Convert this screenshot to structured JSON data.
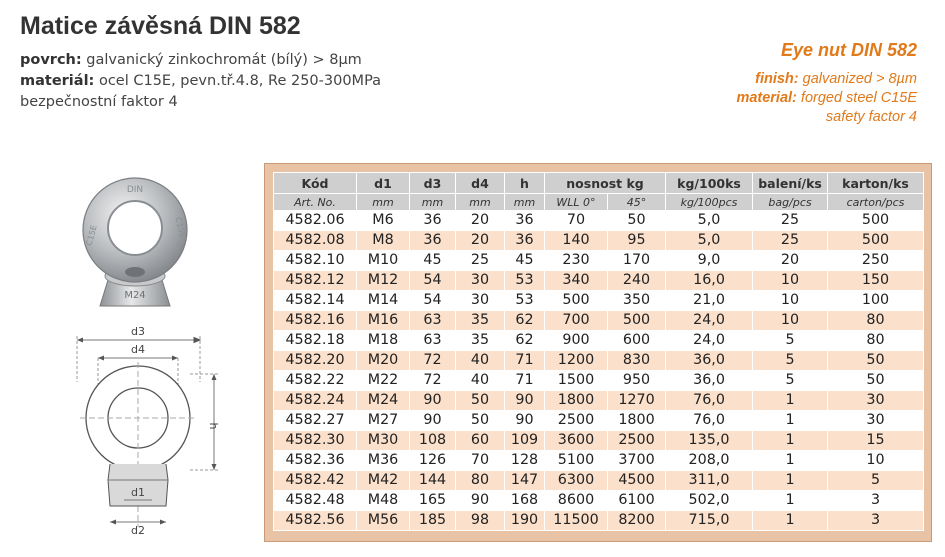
{
  "header": {
    "title": "Matice závěsná DIN 582",
    "surface_label": "povrch:",
    "surface_value": " galvanický zinkochromát (bílý) > 8µm",
    "material_label": "materiál:",
    "material_value": " ocel C15E, pevn.tř.4.8, Re 250-300MPa",
    "safety": "bezpečnostní faktor 4"
  },
  "header_en": {
    "title": "Eye nut DIN 582",
    "finish_label": "finish:",
    "finish_value": " galvanized > 8µm",
    "material_label": "material:",
    "material_value": " forged steel C15E",
    "safety": "safety factor 4"
  },
  "colors": {
    "accent": "#e07a1a",
    "frame": "#e8c3a6",
    "row_tint": "#fbe0cb",
    "header_bg": "#cfcfcf"
  },
  "photo": {
    "marking_top": "DIN",
    "marking_left": "C15E",
    "marking_right": "C15E",
    "marking_bottom": "M24"
  },
  "drawing": {
    "d3": "d3",
    "d4": "d4",
    "h": "h",
    "d1": "d1",
    "d2": "d2"
  },
  "table": {
    "header_row1": [
      "Kód",
      "d1",
      "d3",
      "d4",
      "h",
      "nosnost kg",
      "kg/100ks",
      "balení/ks",
      "karton/ks"
    ],
    "header_row2": [
      "Art. No.",
      "mm",
      "mm",
      "mm",
      "mm",
      "WLL 0°",
      "45°",
      "kg/100pcs",
      "bag/pcs",
      "carton/pcs"
    ],
    "rows": [
      [
        "4582.06",
        "M6",
        "36",
        "20",
        "36",
        "70",
        "50",
        "5,0",
        "25",
        "500"
      ],
      [
        "4582.08",
        "M8",
        "36",
        "20",
        "36",
        "140",
        "95",
        "5,0",
        "25",
        "500"
      ],
      [
        "4582.10",
        "M10",
        "45",
        "25",
        "45",
        "230",
        "170",
        "9,0",
        "20",
        "250"
      ],
      [
        "4582.12",
        "M12",
        "54",
        "30",
        "53",
        "340",
        "240",
        "16,0",
        "10",
        "150"
      ],
      [
        "4582.14",
        "M14",
        "54",
        "30",
        "53",
        "500",
        "350",
        "21,0",
        "10",
        "100"
      ],
      [
        "4582.16",
        "M16",
        "63",
        "35",
        "62",
        "700",
        "500",
        "24,0",
        "10",
        "80"
      ],
      [
        "4582.18",
        "M18",
        "63",
        "35",
        "62",
        "900",
        "600",
        "24,0",
        "5",
        "80"
      ],
      [
        "4582.20",
        "M20",
        "72",
        "40",
        "71",
        "1200",
        "830",
        "36,0",
        "5",
        "50"
      ],
      [
        "4582.22",
        "M22",
        "72",
        "40",
        "71",
        "1500",
        "950",
        "36,0",
        "5",
        "50"
      ],
      [
        "4582.24",
        "M24",
        "90",
        "50",
        "90",
        "1800",
        "1270",
        "76,0",
        "1",
        "30"
      ],
      [
        "4582.27",
        "M27",
        "90",
        "50",
        "90",
        "2500",
        "1800",
        "76,0",
        "1",
        "30"
      ],
      [
        "4582.30",
        "M30",
        "108",
        "60",
        "109",
        "3600",
        "2500",
        "135,0",
        "1",
        "15"
      ],
      [
        "4582.36",
        "M36",
        "126",
        "70",
        "128",
        "5100",
        "3700",
        "208,0",
        "1",
        "10"
      ],
      [
        "4582.42",
        "M42",
        "144",
        "80",
        "147",
        "6300",
        "4500",
        "311,0",
        "1",
        "5"
      ],
      [
        "4582.48",
        "M48",
        "165",
        "90",
        "168",
        "8600",
        "6100",
        "502,0",
        "1",
        "3"
      ],
      [
        "4582.56",
        "M56",
        "185",
        "98",
        "190",
        "11500",
        "8200",
        "715,0",
        "1",
        "3"
      ]
    ]
  }
}
